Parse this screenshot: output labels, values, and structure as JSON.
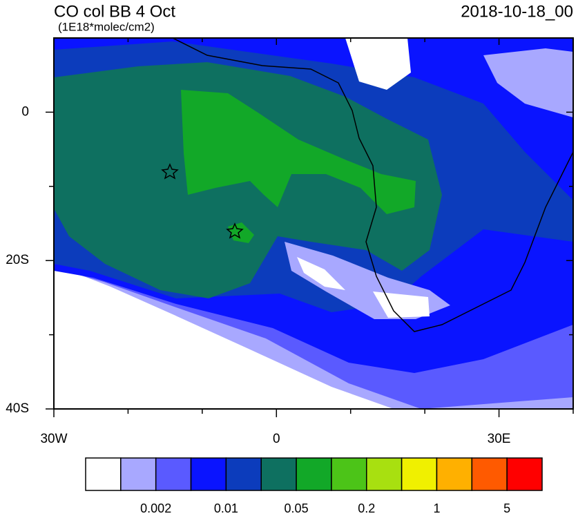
{
  "header": {
    "title": "CO col BB 4 Oct",
    "subtitle": "(1E18*molec/cm2)",
    "date": "2018-10-18_00"
  },
  "map": {
    "lonlim": [
      -30,
      40
    ],
    "latlim": [
      -40,
      10
    ],
    "xticks": [
      {
        "value": -30,
        "label": "30W"
      },
      0,
      {
        "value": 30,
        "label": "30E"
      }
    ],
    "xminor": [
      -20,
      -10,
      10,
      20,
      40
    ],
    "yticks": [
      0,
      {
        "value": -20,
        "label": "20S"
      },
      {
        "value": -40,
        "label": "40S"
      }
    ],
    "yminor": [
      -10,
      -30
    ]
  },
  "colorbar": {
    "colors": [
      "#ffffff",
      "#a8a8ff",
      "#5a5aff",
      "#0a14ff",
      "#0c3cbc",
      "#0e7060",
      "#12a828",
      "#4cc418",
      "#a8e010",
      "#f0f000",
      "#ffb000",
      "#ff5a00",
      "#ff0000"
    ],
    "labels": [
      "0.002",
      "0.01",
      "0.05",
      "0.2",
      "1",
      "5"
    ]
  }
}
